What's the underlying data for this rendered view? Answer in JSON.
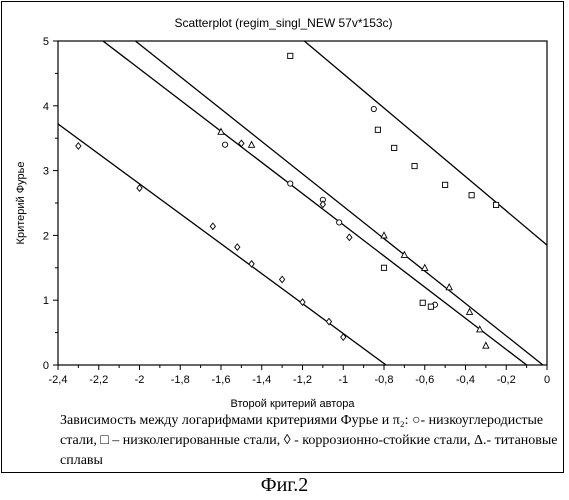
{
  "chart_data": {
    "type": "scatter",
    "title": "Scatterplot (regim_singl_NEW 57v*153c)",
    "xlabel": "Второй критерий автора",
    "ylabel": "Критерий Фурье",
    "xlim": [
      -2.4,
      0
    ],
    "ylim": [
      0,
      5
    ],
    "xticks": [
      "-2,4",
      "-2,2",
      "-2",
      "-1,8",
      "-1,6",
      "-1,4",
      "-1,2",
      "-1",
      "-0,8",
      "-0,6",
      "-0,4",
      "-0,2",
      "0"
    ],
    "yticks": [
      "0",
      "1",
      "2",
      "3",
      "4",
      "5"
    ],
    "grid": false,
    "legend": "none",
    "series": [
      {
        "marker": "circle",
        "points": [
          [
            -1.58,
            3.4
          ],
          [
            -1.26,
            2.8
          ],
          [
            -1.1,
            2.55
          ],
          [
            -1.02,
            2.2
          ],
          [
            -0.85,
            3.95
          ],
          [
            -0.55,
            0.93
          ]
        ]
      },
      {
        "marker": "square",
        "points": [
          [
            -1.26,
            4.77
          ],
          [
            -0.83,
            3.63
          ],
          [
            -0.75,
            3.35
          ],
          [
            -0.65,
            3.07
          ],
          [
            -0.5,
            2.78
          ],
          [
            -0.37,
            2.62
          ],
          [
            -0.25,
            2.47
          ],
          [
            -0.8,
            1.5
          ],
          [
            -0.61,
            0.96
          ],
          [
            -0.57,
            0.9
          ]
        ]
      },
      {
        "marker": "diamond",
        "points": [
          [
            -2.3,
            3.38
          ],
          [
            -2.0,
            2.73
          ],
          [
            -1.64,
            2.14
          ],
          [
            -1.52,
            1.82
          ],
          [
            -1.45,
            1.56
          ],
          [
            -1.3,
            1.32
          ],
          [
            -1.2,
            0.97
          ],
          [
            -1.07,
            0.67
          ],
          [
            -1.0,
            0.43
          ],
          [
            -1.5,
            3.42
          ],
          [
            -1.1,
            2.48
          ],
          [
            -0.97,
            1.97
          ]
        ]
      },
      {
        "marker": "triangle",
        "points": [
          [
            -1.6,
            3.6
          ],
          [
            -1.45,
            3.4
          ],
          [
            -0.8,
            2.0
          ],
          [
            -0.7,
            1.7
          ],
          [
            -0.6,
            1.5
          ],
          [
            -0.48,
            1.2
          ],
          [
            -0.38,
            0.82
          ],
          [
            -0.33,
            0.55
          ],
          [
            -0.3,
            0.3
          ]
        ]
      }
    ],
    "fit_lines": [
      {
        "x": [
          -2.4,
          -0.79
        ],
        "y": [
          3.72,
          0
        ]
      },
      {
        "x": [
          -2.2,
          -0.1
        ],
        "y": [
          5.05,
          0
        ]
      },
      {
        "x": [
          -2.04,
          -0.02
        ],
        "y": [
          5.05,
          0
        ]
      },
      {
        "x": [
          -1.21,
          0
        ],
        "y": [
          5.05,
          1.85
        ]
      }
    ],
    "colors": {
      "ink": "#000000",
      "background": "#ffffff"
    }
  },
  "caption": {
    "text": "Зависимость между логарифмами  критериями Фурье и π₂: ○- низкоуглеродистые стали, □ – низколегированные стали, ◊ - коррозионно-стойкие стали, Δ.- титановые сплавы"
  },
  "figure_label": "Фиг.2"
}
